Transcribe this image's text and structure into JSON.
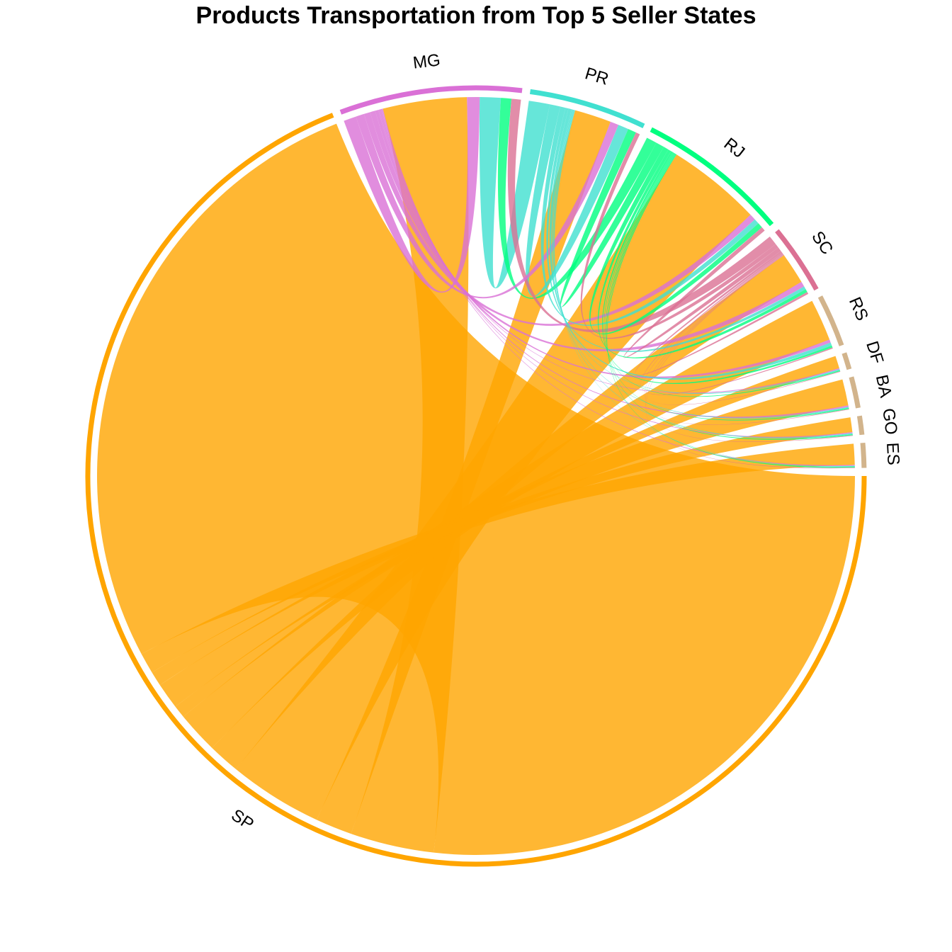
{
  "chart_data": {
    "type": "chord",
    "title": "Products Transportation from Top 5 Seller States",
    "sectors": [
      {
        "name": "SP",
        "color": "#FFA500"
      },
      {
        "name": "MG",
        "color": "#DA70D6"
      },
      {
        "name": "PR",
        "color": "#40E0D0"
      },
      {
        "name": "RJ",
        "color": "#00FF7F"
      },
      {
        "name": "SC",
        "color": "#DB7093"
      },
      {
        "name": "RS",
        "color": "#D2B48C"
      },
      {
        "name": "DF",
        "color": "#D2B48C"
      },
      {
        "name": "BA",
        "color": "#D2B48C"
      },
      {
        "name": "GO",
        "color": "#D2B48C"
      },
      {
        "name": "ES",
        "color": "#D2B48C"
      }
    ],
    "links": [
      {
        "from": "SP",
        "to": "SP",
        "value": 60
      },
      {
        "from": "SP",
        "to": "MG",
        "value": 8
      },
      {
        "from": "SP",
        "to": "PR",
        "value": 3.5
      },
      {
        "from": "SP",
        "to": "RJ",
        "value": 9
      },
      {
        "from": "SP",
        "to": "SC",
        "value": 3
      },
      {
        "from": "SP",
        "to": "RS",
        "value": 4
      },
      {
        "from": "SP",
        "to": "DF",
        "value": 1.2
      },
      {
        "from": "SP",
        "to": "BA",
        "value": 2.5
      },
      {
        "from": "SP",
        "to": "GO",
        "value": 1.4
      },
      {
        "from": "SP",
        "to": "ES",
        "value": 2.0
      },
      {
        "from": "MG",
        "to": "MG",
        "value": 1.2
      },
      {
        "from": "MG",
        "to": "PR",
        "value": 0.8
      },
      {
        "from": "MG",
        "to": "RJ",
        "value": 0.6
      },
      {
        "from": "MG",
        "to": "SC",
        "value": 0.5
      },
      {
        "from": "MG",
        "to": "RS",
        "value": 0.3
      },
      {
        "from": "MG",
        "to": "DF",
        "value": 0.1
      },
      {
        "from": "MG",
        "to": "BA",
        "value": 0.15
      },
      {
        "from": "MG",
        "to": "GO",
        "value": 0.1
      },
      {
        "from": "MG",
        "to": "ES",
        "value": 0.1
      },
      {
        "from": "PR",
        "to": "MG",
        "value": 2.0
      },
      {
        "from": "PR",
        "to": "PR",
        "value": 1.0
      },
      {
        "from": "PR",
        "to": "RJ",
        "value": 0.5
      },
      {
        "from": "PR",
        "to": "SC",
        "value": 0.3
      },
      {
        "from": "PR",
        "to": "RS",
        "value": 0.3
      },
      {
        "from": "PR",
        "to": "DF",
        "value": 0.1
      },
      {
        "from": "PR",
        "to": "BA",
        "value": 0.1
      },
      {
        "from": "PR",
        "to": "GO",
        "value": 0.1
      },
      {
        "from": "PR",
        "to": "ES",
        "value": 0.05
      },
      {
        "from": "RJ",
        "to": "MG",
        "value": 1.0
      },
      {
        "from": "RJ",
        "to": "PR",
        "value": 0.8
      },
      {
        "from": "RJ",
        "to": "RJ",
        "value": 0.5
      },
      {
        "from": "RJ",
        "to": "SC",
        "value": 0.3
      },
      {
        "from": "RJ",
        "to": "RS",
        "value": 0.2
      },
      {
        "from": "RJ",
        "to": "DF",
        "value": 0.1
      },
      {
        "from": "RJ",
        "to": "BA",
        "value": 0.1
      },
      {
        "from": "RJ",
        "to": "GO",
        "value": 0.1
      },
      {
        "from": "RJ",
        "to": "ES",
        "value": 0.1
      },
      {
        "from": "SC",
        "to": "MG",
        "value": 0.9
      },
      {
        "from": "SC",
        "to": "PR",
        "value": 0.4
      },
      {
        "from": "SC",
        "to": "RJ",
        "value": 0.4
      },
      {
        "from": "SC",
        "to": "SC",
        "value": 0.2
      },
      {
        "from": "SC",
        "to": "RS",
        "value": 0.1
      },
      {
        "from": "SC",
        "to": "DF",
        "value": 0.05
      },
      {
        "from": "SC",
        "to": "BA",
        "value": 0.05
      },
      {
        "from": "SC",
        "to": "GO",
        "value": 0.05
      },
      {
        "from": "SC",
        "to": "ES",
        "value": 0.05
      }
    ]
  }
}
